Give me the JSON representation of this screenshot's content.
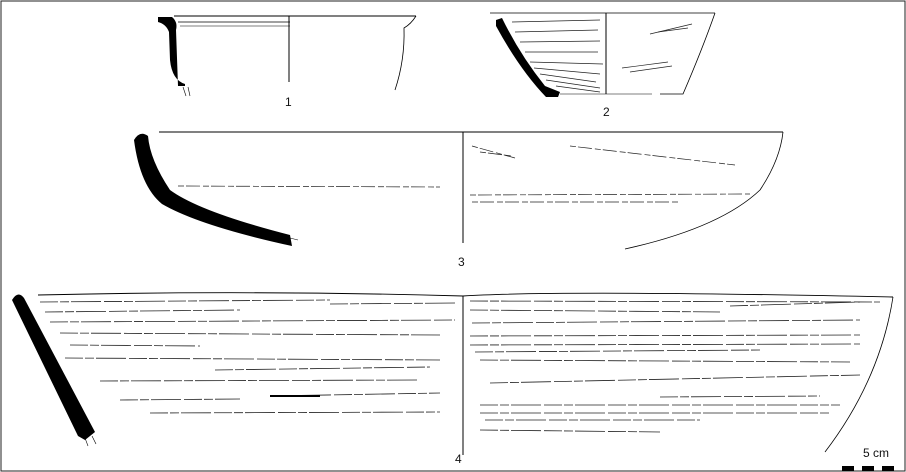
{
  "figure": {
    "vessels": [
      {
        "number": "1"
      },
      {
        "number": "2"
      },
      {
        "number": "3"
      },
      {
        "number": "4"
      }
    ],
    "scale_bar": {
      "label": "5 cm"
    }
  },
  "colors": {
    "ink": "#000000",
    "background": "#ffffff"
  }
}
